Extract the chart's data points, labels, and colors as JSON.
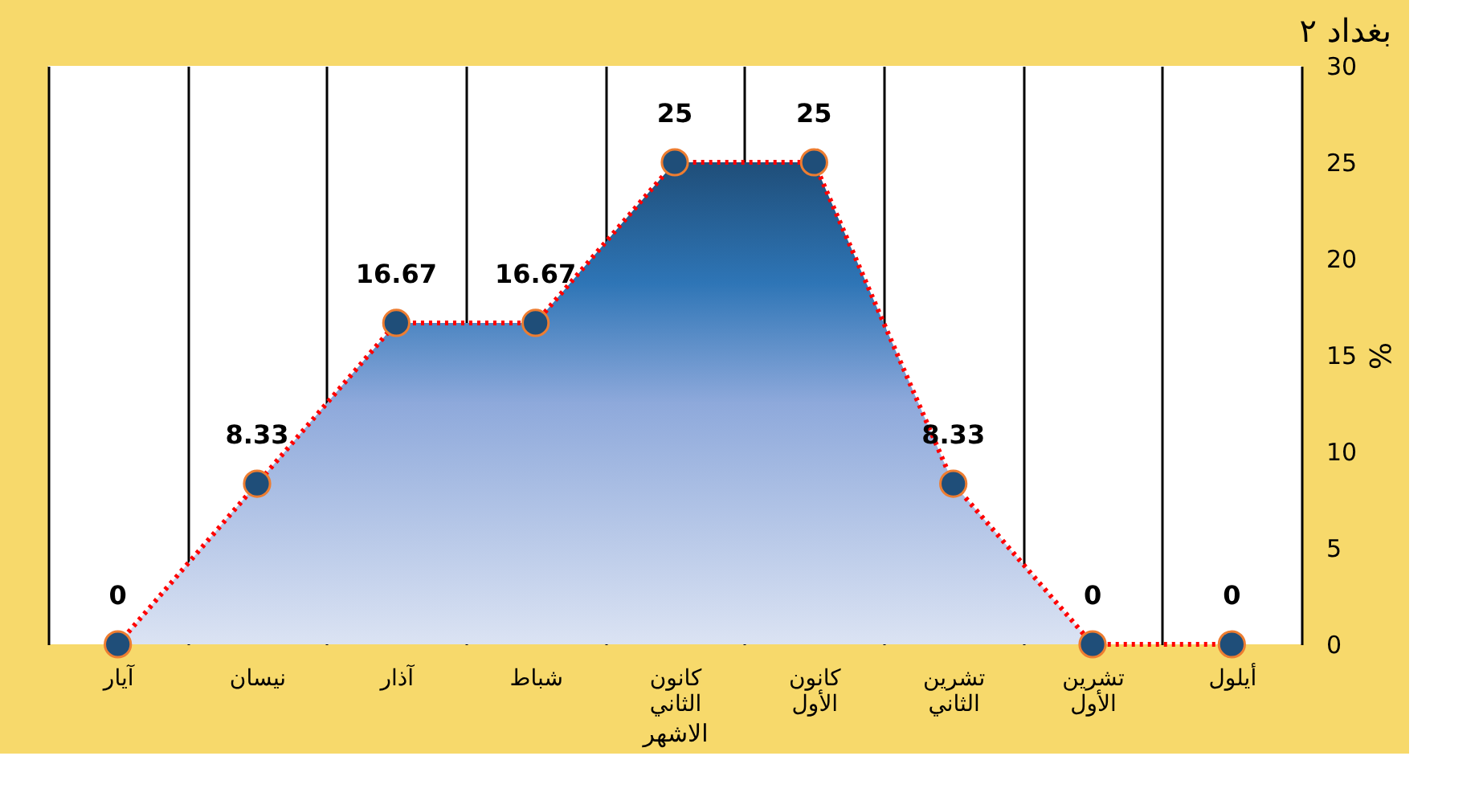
{
  "chart_data": {
    "type": "area",
    "title": "بغداد ٢",
    "xlabel": "الاشهر",
    "ylabel": "%",
    "categories": [
      "آيار",
      "نيسان",
      "آذار",
      "شباط",
      "كانون الثاني",
      "كانون الأول",
      "تشرين الثاني",
      "تشرين الأول",
      "أيلول"
    ],
    "series": [
      {
        "color": "#1f4e79",
        "values": [
          0,
          8.33,
          16.67,
          16.67,
          25,
          25,
          8.33,
          0,
          0
        ]
      }
    ],
    "ylim": [
      0,
      30
    ],
    "yticks": [
      0,
      5,
      10,
      15,
      20,
      25,
      30
    ],
    "grid": "x",
    "marker": "circle",
    "line_style": "dotted",
    "data_labels": true
  }
}
